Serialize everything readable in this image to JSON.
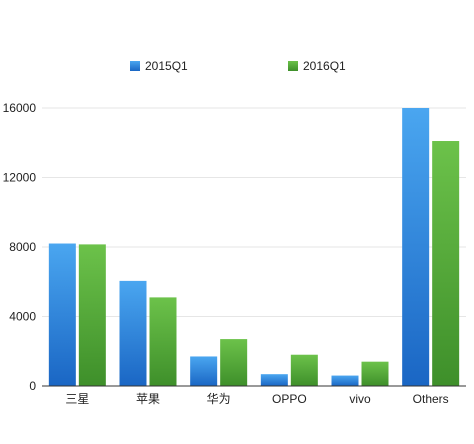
{
  "chart_data": {
    "type": "bar",
    "title": "",
    "xlabel": "",
    "ylabel": "",
    "categories": [
      "三星",
      "苹果",
      "华为",
      "OPPO",
      "vivo",
      "Others"
    ],
    "series": [
      {
        "name": "2015Q1",
        "values": [
          8200,
          6050,
          1700,
          680,
          600,
          16000
        ],
        "color": "#2f86dd"
      },
      {
        "name": "2016Q1",
        "values": [
          8150,
          5100,
          2700,
          1800,
          1400,
          14100
        ],
        "color": "#56ad3c"
      }
    ],
    "ylim": [
      0,
      16000
    ],
    "yticks": [
      0,
      4000,
      8000,
      12000,
      16000
    ],
    "grid": true,
    "legend_position": "top"
  }
}
